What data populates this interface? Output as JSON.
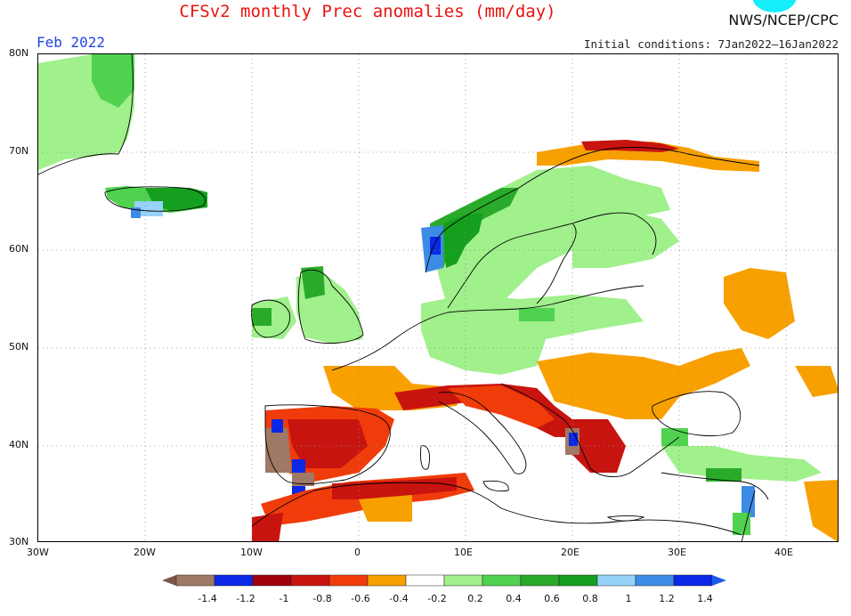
{
  "header": {
    "title": "CFSv2 monthly Prec anomalies (mm/day)",
    "agency": "NWS/NCEP/CPC",
    "period": "Feb 2022",
    "initial_conditions": "Initial conditions: 7Jan2022–16Jan2022"
  },
  "map": {
    "region": "Europe / North Africa",
    "lon_range": [
      -30,
      45
    ],
    "lat_range": [
      30,
      80
    ],
    "x_tick_labels": [
      "30W",
      "20W",
      "10W",
      "0",
      "10E",
      "20E",
      "30E",
      "40E"
    ],
    "y_tick_labels": [
      "80N",
      "70N",
      "60N",
      "50N",
      "40N",
      "30N"
    ],
    "gridlines": true
  },
  "colorbar": {
    "labels": [
      "-1.4",
      "-1.2",
      "-1",
      "-0.8",
      "-0.6",
      "-0.4",
      "-0.2",
      "0.2",
      "0.4",
      "0.6",
      "0.8",
      "1",
      "1.2",
      "1.4"
    ],
    "colors": [
      "#a07866",
      "#0a28e6",
      "#a0000a",
      "#c8140f",
      "#f03c0a",
      "#f8a000",
      "#ffffff",
      "#a0f08c",
      "#50d250",
      "#2aaa2a",
      "#14a01e",
      "#96d2fa",
      "#3c8ce6",
      "#0a28e6"
    ],
    "left_end_color": "#7a5646",
    "right_end_color": "#1e5ae6"
  }
}
